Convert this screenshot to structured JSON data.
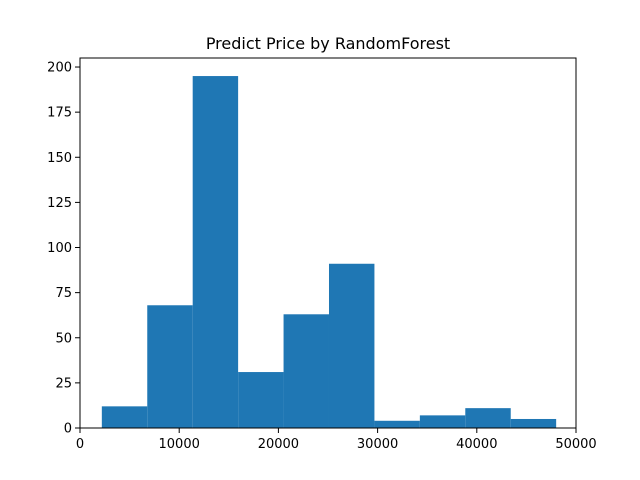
{
  "chart_data": {
    "type": "bar",
    "title": "Predict Price by RandomForest",
    "xlabel": "",
    "ylabel": "",
    "bar_color": "#1f77b4",
    "xlim": [
      0,
      50000
    ],
    "ylim": [
      0,
      205
    ],
    "bins": [
      {
        "x0": 2200,
        "x1": 6780,
        "count": 12
      },
      {
        "x0": 6780,
        "x1": 11360,
        "count": 68
      },
      {
        "x0": 11360,
        "x1": 15940,
        "count": 195
      },
      {
        "x0": 15940,
        "x1": 20520,
        "count": 31
      },
      {
        "x0": 20520,
        "x1": 25100,
        "count": 63
      },
      {
        "x0": 25100,
        "x1": 29680,
        "count": 91
      },
      {
        "x0": 29680,
        "x1": 34260,
        "count": 4
      },
      {
        "x0": 34260,
        "x1": 38840,
        "count": 7
      },
      {
        "x0": 38840,
        "x1": 43420,
        "count": 11
      },
      {
        "x0": 43420,
        "x1": 48000,
        "count": 5
      }
    ],
    "x_ticks": [
      {
        "value": 0,
        "label": "0"
      },
      {
        "value": 10000,
        "label": "10000"
      },
      {
        "value": 20000,
        "label": "20000"
      },
      {
        "value": 30000,
        "label": "30000"
      },
      {
        "value": 40000,
        "label": "40000"
      },
      {
        "value": 50000,
        "label": "50000"
      }
    ],
    "y_ticks": [
      {
        "value": 0,
        "label": "0"
      },
      {
        "value": 25,
        "label": "25"
      },
      {
        "value": 50,
        "label": "50"
      },
      {
        "value": 75,
        "label": "75"
      },
      {
        "value": 100,
        "label": "100"
      },
      {
        "value": 125,
        "label": "125"
      },
      {
        "value": 150,
        "label": "150"
      },
      {
        "value": 175,
        "label": "175"
      },
      {
        "value": 200,
        "label": "200"
      }
    ],
    "grid": false,
    "legend": "none"
  }
}
